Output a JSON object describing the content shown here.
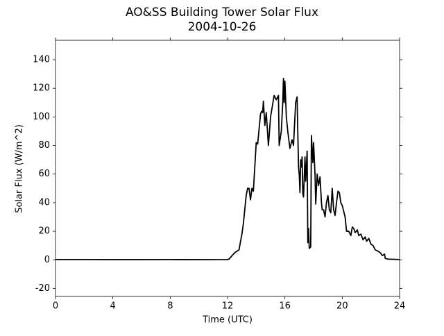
{
  "chart_data": {
    "type": "line",
    "title": "AO&SS Building Tower Solar Flux",
    "subtitle": "2004-10-26",
    "xlabel": "Time (UTC)",
    "ylabel": "Solar Flux (W/m^2)",
    "xlim": [
      0,
      24
    ],
    "xticks": [
      0,
      4,
      8,
      12,
      16,
      20,
      24
    ],
    "ylim": [
      -25.6,
      153.6
    ],
    "yticks": [
      -20,
      0,
      20,
      40,
      60,
      80,
      100,
      120,
      140
    ],
    "grid": false,
    "series": [
      {
        "name": "Solar Flux",
        "color": "#000000",
        "x": [
          0,
          2,
          4,
          6,
          8,
          10,
          12,
          12.1,
          12.5,
          12.8,
          13.0,
          13.1,
          13.3,
          13.4,
          13.5,
          13.6,
          13.7,
          13.8,
          13.9,
          14.0,
          14.1,
          14.3,
          14.38,
          14.45,
          14.5,
          14.6,
          14.7,
          14.85,
          15.0,
          15.15,
          15.25,
          15.4,
          15.55,
          15.6,
          15.75,
          15.85,
          15.9,
          15.95,
          16.0,
          16.1,
          16.2,
          16.35,
          16.5,
          16.6,
          16.75,
          16.85,
          16.95,
          17.0,
          17.05,
          17.1,
          17.15,
          17.2,
          17.25,
          17.3,
          17.4,
          17.45,
          17.55,
          17.6,
          17.65,
          17.7,
          17.8,
          17.85,
          17.95,
          18.0,
          18.1,
          18.15,
          18.25,
          18.35,
          18.45,
          18.55,
          18.6,
          18.7,
          18.8,
          18.9,
          19.0,
          19.1,
          19.2,
          19.3,
          19.4,
          19.5,
          19.6,
          19.7,
          19.8,
          19.9,
          20.0,
          20.2,
          20.3,
          20.45,
          20.6,
          20.7,
          20.8,
          20.9,
          21.05,
          21.15,
          21.3,
          21.45,
          21.6,
          21.7,
          21.85,
          22.0,
          22.15,
          22.3,
          22.5,
          22.65,
          22.8,
          22.95,
          23.0,
          23.2,
          24
        ],
        "values": [
          0.2,
          0.2,
          0.1,
          0.1,
          0.2,
          0.1,
          0.2,
          0.5,
          5,
          7,
          18,
          25,
          45,
          50,
          50,
          42,
          50,
          48,
          65,
          82,
          81,
          102,
          104,
          103,
          111,
          94,
          103,
          80,
          100,
          109,
          115,
          112,
          115,
          80,
          90,
          110,
          127,
          110,
          125,
          100,
          90,
          78,
          84,
          80,
          110,
          114,
          65,
          60,
          47,
          70,
          65,
          72,
          46,
          44,
          72,
          55,
          76,
          12,
          22,
          8,
          9,
          87,
          68,
          82,
          60,
          39,
          60,
          52,
          58,
          40,
          35,
          35,
          30,
          40,
          45,
          35,
          33,
          50,
          35,
          31,
          40,
          48,
          47,
          40,
          38,
          30,
          20,
          20,
          17,
          23,
          22,
          19,
          21,
          17,
          18,
          14,
          16,
          13,
          15,
          11,
          10,
          7,
          6,
          5,
          3,
          4,
          1,
          0.5,
          0.2
        ]
      }
    ]
  }
}
